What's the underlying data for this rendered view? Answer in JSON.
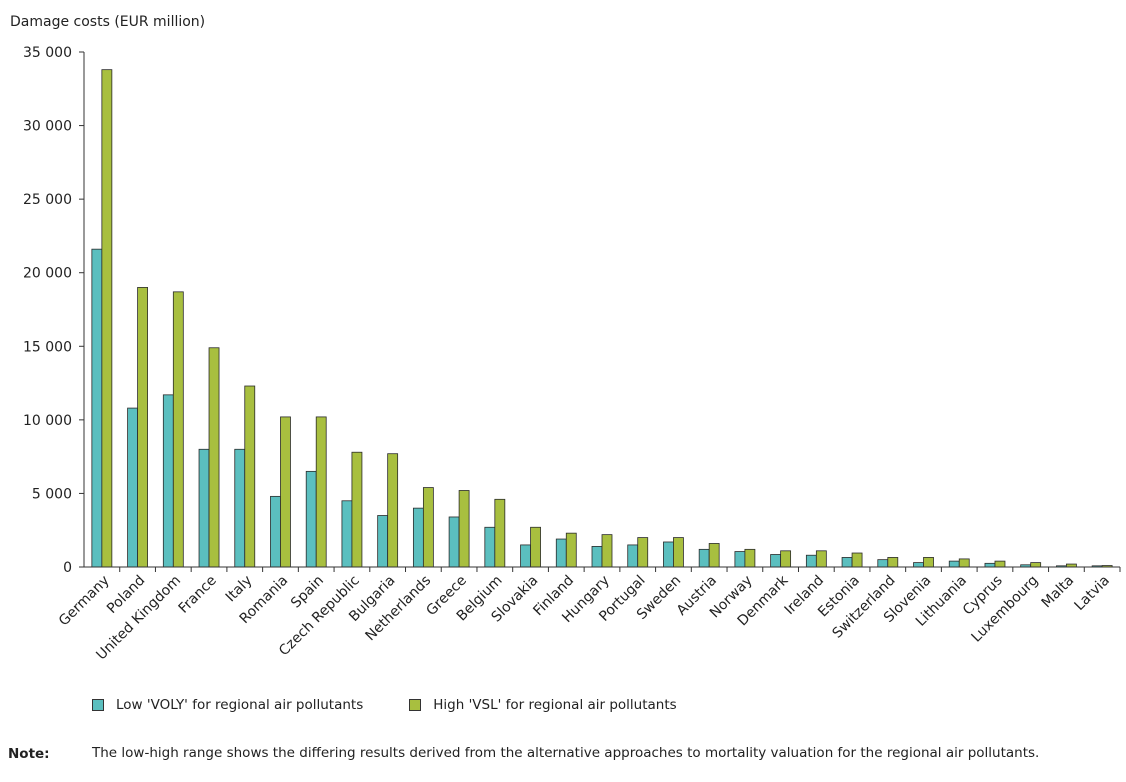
{
  "chart_data": {
    "type": "bar",
    "ylabel": "Damage costs (EUR million)",
    "xlabel": "",
    "ylim": [
      0,
      35000
    ],
    "yticks": [
      0,
      5000,
      10000,
      15000,
      20000,
      25000,
      30000,
      35000
    ],
    "ytick_labels": [
      "0",
      "5 000",
      "10 000",
      "15 000",
      "20 000",
      "25 000",
      "30 000",
      "35 000"
    ],
    "grid": false,
    "legend_position": "bottom",
    "categories": [
      "Germany",
      "Poland",
      "United Kingdom",
      "France",
      "Italy",
      "Romania",
      "Spain",
      "Czech Republic",
      "Bulgaria",
      "Netherlands",
      "Greece",
      "Belgium",
      "Slovakia",
      "Finland",
      "Hungary",
      "Portugal",
      "Sweden",
      "Austria",
      "Norway",
      "Denmark",
      "Ireland",
      "Estonia",
      "Switzerland",
      "Slovenia",
      "Lithuania",
      "Cyprus",
      "Luxembourg",
      "Malta",
      "Latvia"
    ],
    "series": [
      {
        "name": "Low 'VOLY' for regional air pollutants",
        "color": "#5bbfbf",
        "values": [
          21600,
          10800,
          11700,
          8000,
          8000,
          4800,
          6500,
          4500,
          3500,
          4000,
          3400,
          2700,
          1500,
          1900,
          1400,
          1500,
          1700,
          1200,
          1050,
          850,
          800,
          650,
          500,
          300,
          400,
          250,
          150,
          80,
          80
        ]
      },
      {
        "name": "High 'VSL' for regional air pollutants",
        "color": "#a8bf3f",
        "values": [
          33800,
          19000,
          18700,
          14900,
          12300,
          10200,
          10200,
          7800,
          7700,
          5400,
          5200,
          4600,
          2700,
          2300,
          2200,
          2000,
          2000,
          1600,
          1200,
          1100,
          1100,
          950,
          650,
          650,
          550,
          400,
          300,
          200,
          100
        ]
      }
    ]
  },
  "note": {
    "label": "Note:",
    "text": "The low-high range shows the differing results derived from the alternative approaches to mortality valuation for the regional air pollutants."
  }
}
